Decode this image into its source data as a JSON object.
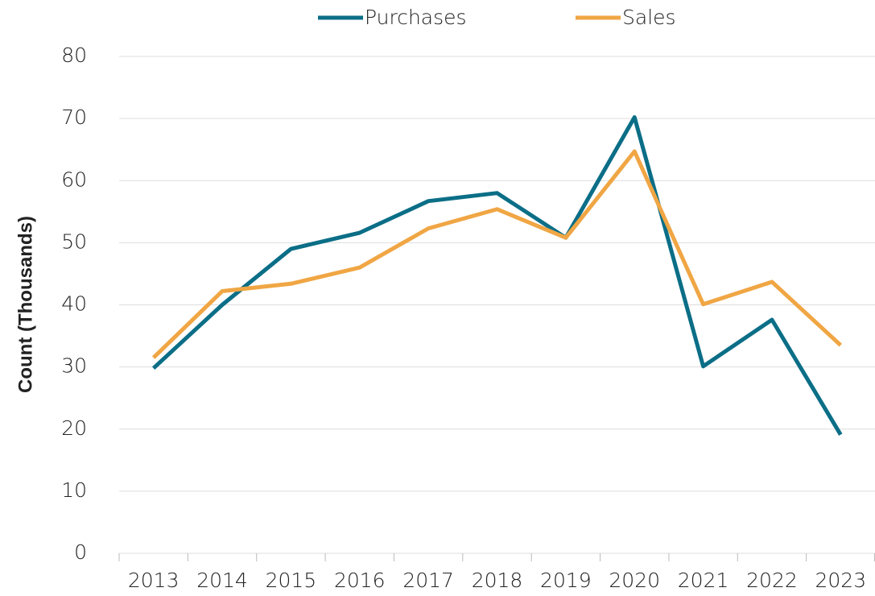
{
  "chart_data": {
    "type": "line",
    "y_label": "Count (Thousands)",
    "categories": [
      "2013",
      "2014",
      "2015",
      "2016",
      "2017",
      "2018",
      "2019",
      "2020",
      "2021",
      "2022",
      "2023"
    ],
    "series": [
      {
        "name": "Purchases",
        "color": "#0b6e87",
        "values": [
          29.8,
          40,
          49,
          51.6,
          56.7,
          58,
          50.8,
          70.2,
          30.1,
          37.6,
          19.1
        ]
      },
      {
        "name": "Sales",
        "color": "#f0a644",
        "values": [
          31.5,
          42.2,
          43.4,
          46,
          52.3,
          55.4,
          50.8,
          64.7,
          40.1,
          43.7,
          33.5
        ]
      }
    ],
    "ylim": [
      0,
      80
    ],
    "yticks": [
      0,
      10,
      20,
      30,
      40,
      50,
      60,
      70,
      80
    ],
    "grid": true,
    "legend": "top"
  }
}
